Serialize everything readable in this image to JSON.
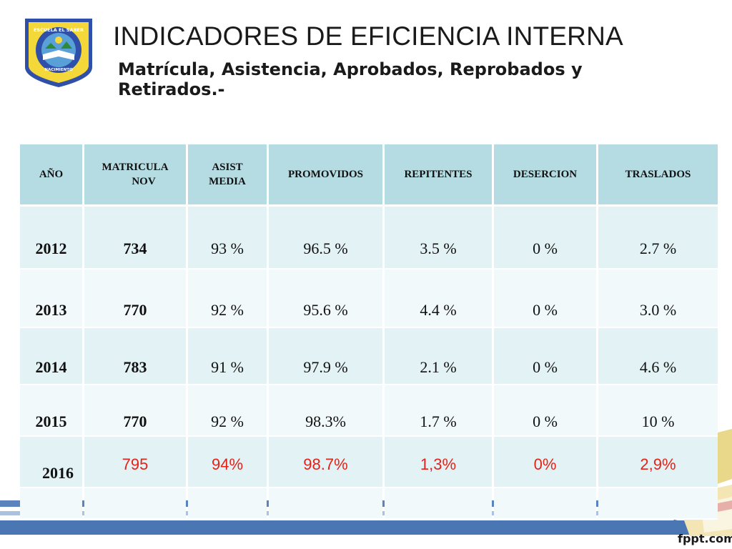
{
  "header": {
    "title": "INDICADORES DE EFICIENCIA INTERNA",
    "subtitle": "Matrícula, Asistencia, Aprobados, Reprobados y Retirados.-"
  },
  "logo": {
    "top_text": "ESCUELA EL SABER",
    "bottom_text": "NACIMIENTO",
    "colors": {
      "border": "#2f4fa8",
      "fill": "#f4d83a",
      "ring": "#2f4fa8",
      "inner": "#5aa0d8"
    }
  },
  "table": {
    "headers": [
      {
        "line1": "AÑO",
        "line2": ""
      },
      {
        "line1": "MATRICULA",
        "line2": "NOV"
      },
      {
        "line1": "ASIST",
        "line2": "MEDIA"
      },
      {
        "line1": "PROMOVIDOS",
        "line2": ""
      },
      {
        "line1": "REPITENTES",
        "line2": ""
      },
      {
        "line1": "DESERCION",
        "line2": ""
      },
      {
        "line1": "TRASLADOS",
        "line2": ""
      }
    ],
    "rows": [
      {
        "anio": "2012",
        "matricula": "734",
        "asist": "93 %",
        "promovidos": "96.5 %",
        "repitentes": "3.5 %",
        "desercion": "0 %",
        "traslados": "2.7 %"
      },
      {
        "anio": "2013",
        "matricula": "770",
        "asist": "92 %",
        "promovidos": "95.6 %",
        "repitentes": "4.4 %",
        "desercion": "0 %",
        "traslados": "3.0 %"
      },
      {
        "anio": "2014",
        "matricula": "783",
        "asist": "91  %",
        "promovidos": "97.9 %",
        "repitentes": "2.1  %",
        "desercion": "0 %",
        "traslados": "4.6  %"
      },
      {
        "anio": "2015",
        "matricula": "770",
        "asist": "92 %",
        "promovidos": "98.3%",
        "repitentes": "1.7 %",
        "desercion": "0 %",
        "traslados": "10 %"
      },
      {
        "anio": "2016",
        "matricula": "795",
        "asist": "94%",
        "promovidos": "98.7%",
        "repitentes": "1,3%",
        "desercion": "0%",
        "traslados": "2,9%"
      },
      {
        "anio": "",
        "matricula": "",
        "asist": "",
        "promovidos": "",
        "repitentes": "",
        "desercion": "",
        "traslados": ""
      }
    ],
    "highlight_color": "#e2231a",
    "header_color": "#b4dce2"
  },
  "footer": {
    "brand": "fppt.com"
  }
}
